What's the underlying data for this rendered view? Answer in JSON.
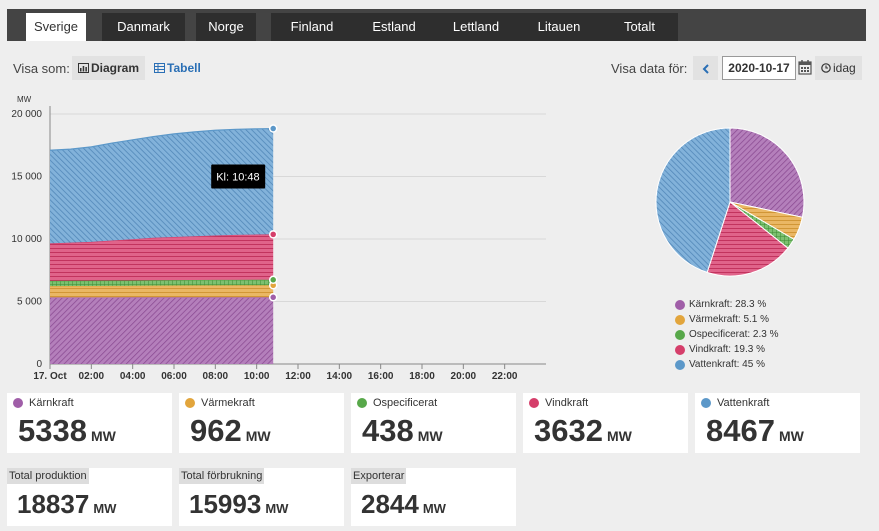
{
  "tabs": [
    {
      "label": "Sverige",
      "active": true
    },
    {
      "label": "Danmark"
    },
    {
      "label": "Norge"
    },
    {
      "label": "Finland"
    },
    {
      "label": "Estland"
    },
    {
      "label": "Lettland"
    },
    {
      "label": "Litauen"
    },
    {
      "label": "Totalt"
    }
  ],
  "toolbar": {
    "visa_som_label": "Visa som:",
    "diagram_label": "Diagram",
    "tabell_label": "Tabell",
    "visa_data_label": "Visa data för:",
    "date_value": "2020-10-17",
    "idag_label": "idag",
    "prev_icon": "chevron-left-icon",
    "calendar_icon": "calendar-icon",
    "clock_icon": "clock-icon"
  },
  "tooltip": "Kl: 10:48",
  "chart_data": {
    "type": "area",
    "stacked": true,
    "ylabel": "MW",
    "ylim": [
      0,
      20000
    ],
    "yticks": [
      0,
      5000,
      10000,
      15000,
      20000
    ],
    "ytick_labels": [
      "0",
      "5 000",
      "10 000",
      "15 000",
      "20 000"
    ],
    "xlim_hours": [
      0,
      24
    ],
    "xtick_labels": [
      "17. Oct",
      "02:00",
      "04:00",
      "06:00",
      "08:00",
      "10:00",
      "12:00",
      "14:00",
      "16:00",
      "18:00",
      "20:00",
      "22:00"
    ],
    "x_hours": [
      0,
      1,
      2,
      3,
      4,
      5,
      6,
      7,
      8,
      9,
      10,
      10.8
    ],
    "series": [
      {
        "name": "Kärnkraft",
        "color": "#a05ea8",
        "values": [
          5330,
          5332,
          5334,
          5335,
          5336,
          5336,
          5337,
          5337,
          5338,
          5338,
          5338,
          5338
        ]
      },
      {
        "name": "Värmekraft",
        "color": "#e2a53c",
        "values": [
          900,
          905,
          910,
          915,
          920,
          930,
          940,
          950,
          955,
          958,
          960,
          962
        ]
      },
      {
        "name": "Ospecificerat",
        "color": "#58a84a",
        "values": [
          420,
          422,
          424,
          426,
          428,
          430,
          432,
          434,
          436,
          437,
          438,
          438
        ]
      },
      {
        "name": "Vindkraft",
        "color": "#d53e6a",
        "values": [
          3000,
          3050,
          3100,
          3200,
          3300,
          3400,
          3450,
          3500,
          3550,
          3600,
          3620,
          3632
        ]
      },
      {
        "name": "Vattenkraft",
        "color": "#5c98c9",
        "values": [
          7450,
          7480,
          7600,
          7800,
          7950,
          8100,
          8250,
          8350,
          8420,
          8440,
          8460,
          8467
        ]
      }
    ]
  },
  "pie": {
    "items": [
      {
        "name": "Kärnkraft",
        "label": "Kärnkraft: 28.3 %",
        "pct": 28.3,
        "color": "#a05ea8"
      },
      {
        "name": "Värmekraft",
        "label": "Värmekraft: 5.1 %",
        "pct": 5.1,
        "color": "#e2a53c"
      },
      {
        "name": "Ospecificerat",
        "label": "Ospecificerat: 2.3 %",
        "pct": 2.3,
        "color": "#58a84a"
      },
      {
        "name": "Vindkraft",
        "label": "Vindkraft: 19.3 %",
        "pct": 19.3,
        "color": "#d53e6a"
      },
      {
        "name": "Vattenkraft",
        "label": "Vattenkraft: 45 %",
        "pct": 45,
        "color": "#5c98c9"
      }
    ]
  },
  "cards": [
    {
      "name": "Kärnkraft",
      "value": "5338",
      "unit": "MW",
      "color": "#a05ea8"
    },
    {
      "name": "Värmekraft",
      "value": "962",
      "unit": "MW",
      "color": "#e2a53c"
    },
    {
      "name": "Ospecificerat",
      "value": "438",
      "unit": "MW",
      "color": "#58a84a"
    },
    {
      "name": "Vindkraft",
      "value": "3632",
      "unit": "MW",
      "color": "#d53e6a"
    },
    {
      "name": "Vattenkraft",
      "value": "8467",
      "unit": "MW",
      "color": "#5c98c9"
    }
  ],
  "totals": [
    {
      "label": "Total produktion",
      "value": "18837",
      "unit": "MW"
    },
    {
      "label": "Total förbrukning",
      "value": "15993",
      "unit": "MW"
    },
    {
      "label": "Exporterar",
      "value": "2844",
      "unit": "MW"
    }
  ]
}
